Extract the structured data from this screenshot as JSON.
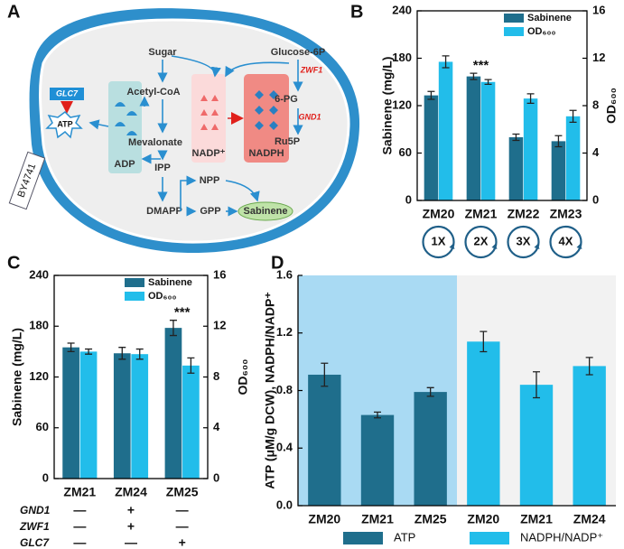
{
  "diagram": {
    "panel": "A",
    "labels": {
      "sugar": "Sugar",
      "glucose6p": "Glucose-6P",
      "zwf1": "ZWF1",
      "acetylcoa": "Acetyl-CoA",
      "pg6": "6-PG",
      "gnd1": "GND1",
      "ru5p": "Ru5P",
      "mevalonate": "Mevalonate",
      "nadp": "NADP⁺",
      "nadph": "NADPH",
      "adp": "ADP",
      "atp": "ATP",
      "glc7": "GLC7",
      "ipp": "IPP",
      "npp": "NPP",
      "dmapp": "DMAPP",
      "gpp": "GPP",
      "sabinene": "Sabinene",
      "strain": "BY4741"
    }
  },
  "chart_data": [
    {
      "type": "bar",
      "panel": "B",
      "ylabel": "Sabinene (mg/L)",
      "y2label": "OD₆₀₀",
      "categories": [
        "ZM20",
        "ZM21",
        "ZM22",
        "ZM23"
      ],
      "series": [
        {
          "name": "Sabinene",
          "color": "#1f6e8c",
          "values": [
            133,
            157,
            80,
            75
          ],
          "errors": [
            5,
            4,
            4,
            7
          ]
        },
        {
          "name": "OD₆₀₀",
          "color": "#22bdea",
          "axis": "y2",
          "values": [
            11.7,
            10.0,
            8.6,
            7.1
          ],
          "errors": [
            0.5,
            0.2,
            0.4,
            0.5
          ]
        }
      ],
      "ylim": [
        0,
        240
      ],
      "yticks": [
        0,
        60,
        120,
        180,
        240
      ],
      "y2lim": [
        0,
        16
      ],
      "y2ticks": [
        0,
        4,
        8,
        12,
        16
      ],
      "annotation": "***",
      "legend": "upper right",
      "frame": true,
      "copy_numbers": [
        "1X",
        "2X",
        "3X",
        "4X"
      ]
    },
    {
      "type": "bar",
      "panel": "C",
      "ylabel": "Sabinene (mg/L)",
      "y2label": "OD₆₀₀",
      "categories": [
        "ZM21",
        "ZM24",
        "ZM25"
      ],
      "series": [
        {
          "name": "Sabinene",
          "color": "#1f6e8c",
          "values": [
            155,
            148,
            178
          ],
          "errors": [
            5,
            7,
            9
          ]
        },
        {
          "name": "OD₆₀₀",
          "color": "#22bdea",
          "axis": "y2",
          "values": [
            10.0,
            9.8,
            8.9
          ],
          "errors": [
            0.2,
            0.4,
            0.6
          ]
        }
      ],
      "ylim": [
        0,
        240
      ],
      "yticks": [
        0,
        60,
        120,
        180,
        240
      ],
      "y2lim": [
        0,
        16
      ],
      "y2ticks": [
        0,
        4,
        8,
        12,
        16
      ],
      "annotation": "***",
      "legend": "upper right",
      "frame": true,
      "genotype": [
        {
          "gene": "GND1",
          "marks": [
            "—",
            "+",
            "—"
          ]
        },
        {
          "gene": "ZWF1",
          "marks": [
            "—",
            "+",
            "—"
          ]
        },
        {
          "gene": "GLC7",
          "marks": [
            "—",
            "—",
            "+"
          ]
        }
      ]
    },
    {
      "type": "bar",
      "panel": "D",
      "ylabel": "ATP (μM/g DCW), NADPH/NADP⁺",
      "categories": [
        "ZM20",
        "ZM21",
        "ZM25",
        "ZM20",
        "ZM21",
        "ZM24"
      ],
      "series": [
        {
          "name": "ATP",
          "color": "#1f6e8c",
          "values": [
            0.91,
            0.63,
            0.79,
            null,
            null,
            null
          ],
          "errors": [
            0.08,
            0.02,
            0.03,
            null,
            null,
            null
          ]
        },
        {
          "name": "NADPH/NADP⁺",
          "color": "#22bdea",
          "values": [
            null,
            null,
            null,
            1.14,
            0.84,
            0.97
          ],
          "errors": [
            null,
            null,
            null,
            0.07,
            0.09,
            0.06
          ]
        }
      ],
      "ylim": [
        0,
        1.6
      ],
      "yticks": [
        {
          "value": 0,
          "label": "0.0"
        },
        0.4,
        0.8,
        1.2,
        1.6
      ],
      "legend": "bottom",
      "frame": false,
      "background_colors": [
        "#a9daf3",
        "#f2f2f2"
      ]
    }
  ]
}
